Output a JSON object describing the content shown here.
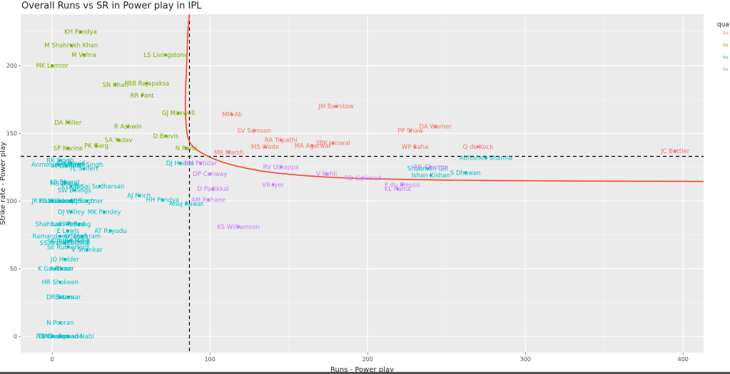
{
  "page": {
    "title": "Overall Runs vs SR in Power play in IPL"
  },
  "chart_data": {
    "type": "scatter",
    "title": "Overall Runs vs SR in Power play in IPL",
    "xlabel": "Runs - Power play",
    "ylabel": "Strike rate - Power play",
    "xlim": [
      -20,
      413
    ],
    "ylim": [
      -12,
      238
    ],
    "xticks": [
      0,
      100,
      200,
      300,
      400
    ],
    "yticks": [
      0,
      50,
      100,
      150,
      200
    ],
    "grid": true,
    "vline_x": 87,
    "hline_y": 133,
    "legend_title": "qua",
    "legend_placement": "right",
    "legend_keys": [
      "Aa",
      "Aa",
      "Aa",
      "Aa"
    ],
    "colors": {
      "q1": "#f8766d",
      "q2": "#7cae00",
      "q3": "#00bfc4",
      "q4": "#c77cff",
      "curve": "#f8442b",
      "panel": "#ebebeb"
    },
    "curve": [
      [
        87,
        238
      ],
      [
        86,
        225
      ],
      [
        85.5,
        210
      ],
      [
        85,
        195
      ],
      [
        84.5,
        180
      ],
      [
        84.5,
        165
      ],
      [
        85.5,
        150
      ],
      [
        88,
        142
      ],
      [
        94,
        136
      ],
      [
        105,
        130
      ],
      [
        120,
        125
      ],
      [
        140,
        121
      ],
      [
        170,
        118
      ],
      [
        200,
        116.5
      ],
      [
        250,
        115.5
      ],
      [
        300,
        115
      ],
      [
        350,
        114.7
      ],
      [
        413,
        114.5
      ]
    ],
    "points": [
      {
        "name": "KH Pandya",
        "x": 18,
        "y": 225,
        "group": "q2"
      },
      {
        "name": "M Shahrukh Khan",
        "x": 12,
        "y": 215,
        "group": "q2"
      },
      {
        "name": "M Vohra",
        "x": 20,
        "y": 208,
        "group": "q2"
      },
      {
        "name": "LS Livingstone",
        "x": 72,
        "y": 208,
        "group": "q2"
      },
      {
        "name": "MK Lomror",
        "x": 0,
        "y": 200,
        "group": "q2"
      },
      {
        "name": "SN Khan",
        "x": 40,
        "y": 186,
        "group": "q2"
      },
      {
        "name": "PBB Rajapaksa",
        "x": 60,
        "y": 187,
        "group": "q2"
      },
      {
        "name": "RR Pant",
        "x": 57,
        "y": 178,
        "group": "q2"
      },
      {
        "name": "GJ Maxwell",
        "x": 80,
        "y": 165,
        "group": "q2"
      },
      {
        "name": "DA Miller",
        "x": 10,
        "y": 158,
        "group": "q2"
      },
      {
        "name": "R Ashwin",
        "x": 48,
        "y": 155,
        "group": "q2"
      },
      {
        "name": "D Brevis",
        "x": 72,
        "y": 148,
        "group": "q2"
      },
      {
        "name": "SA Yadav",
        "x": 42,
        "y": 145,
        "group": "q2"
      },
      {
        "name": "PK Garg",
        "x": 28,
        "y": 141,
        "group": "q2"
      },
      {
        "name": "SP Narine",
        "x": 10,
        "y": 139,
        "group": "q2"
      },
      {
        "name": "N Rana",
        "x": 85,
        "y": 139,
        "group": "q2"
      },
      {
        "name": "MM Ali",
        "x": 114,
        "y": 164,
        "group": "q1"
      },
      {
        "name": "JM Bairstow",
        "x": 180,
        "y": 170,
        "group": "q1"
      },
      {
        "name": "SV Samson",
        "x": 128,
        "y": 152,
        "group": "q1"
      },
      {
        "name": "DA Warner",
        "x": 243,
        "y": 155,
        "group": "q1"
      },
      {
        "name": "PP Shaw",
        "x": 227,
        "y": 152,
        "group": "q1"
      },
      {
        "name": "RA Tripathi",
        "x": 145,
        "y": 145,
        "group": "q1"
      },
      {
        "name": "MS Wade",
        "x": 135,
        "y": 140,
        "group": "q1"
      },
      {
        "name": "MA Agarwal",
        "x": 165,
        "y": 141,
        "group": "q1"
      },
      {
        "name": "YBK Jaiswal",
        "x": 178,
        "y": 143,
        "group": "q1"
      },
      {
        "name": "WP Saha",
        "x": 230,
        "y": 140,
        "group": "q1"
      },
      {
        "name": "Q de Kock",
        "x": 270,
        "y": 140,
        "group": "q1"
      },
      {
        "name": "JC Buttler",
        "x": 395,
        "y": 137,
        "group": "q1"
      },
      {
        "name": "MR Marsh",
        "x": 112,
        "y": 136,
        "group": "q1"
      },
      {
        "name": "Abhishek Sharma",
        "x": 275,
        "y": 132,
        "group": "q3"
      },
      {
        "name": "DJ Hooda",
        "x": 81,
        "y": 128,
        "group": "q3"
      },
      {
        "name": "RK Singh",
        "x": 5,
        "y": 130,
        "group": "q3"
      },
      {
        "name": "Anmolpreet Singh",
        "x": 4,
        "y": 127,
        "group": "q3"
      },
      {
        "name": "TH David",
        "x": 12,
        "y": 128,
        "group": "q3"
      },
      {
        "name": "Arshdeep Singh",
        "x": 17,
        "y": 127,
        "group": "q3"
      },
      {
        "name": "M Lomror",
        "x": 9,
        "y": 126,
        "group": "q3"
      },
      {
        "name": "TL Seifert",
        "x": 20,
        "y": 124,
        "group": "q3"
      },
      {
        "name": "Shubman Gill",
        "x": 238,
        "y": 124,
        "group": "q3"
      },
      {
        "name": "S Dhawan",
        "x": 262,
        "y": 121,
        "group": "q3"
      },
      {
        "name": "Ishan Kishan",
        "x": 240,
        "y": 119,
        "group": "q3"
      },
      {
        "name": "KS Bharat",
        "x": 8,
        "y": 114,
        "group": "q3"
      },
      {
        "name": "MS Dhoni",
        "x": 8,
        "y": 113,
        "group": "q3"
      },
      {
        "name": "S Dube",
        "x": 12,
        "y": 111,
        "group": "q3"
      },
      {
        "name": "B Sai Sudharsan",
        "x": 30,
        "y": 111,
        "group": "q3"
      },
      {
        "name": "SW Billings",
        "x": 14,
        "y": 108,
        "group": "q3"
      },
      {
        "name": "AJ Finch",
        "x": 55,
        "y": 104,
        "group": "q3"
      },
      {
        "name": "HH Pandya",
        "x": 70,
        "y": 101,
        "group": "q3"
      },
      {
        "name": "JR Hazlewood",
        "x": 0,
        "y": 100,
        "group": "q3"
      },
      {
        "name": "KS Williamson",
        "x": 5,
        "y": 100,
        "group": "q3"
      },
      {
        "name": "Mandeep Singh",
        "x": 12,
        "y": 100,
        "group": "q3"
      },
      {
        "name": "MJ Santner",
        "x": 22,
        "y": 100,
        "group": "q3"
      },
      {
        "name": "Anuj Rawat",
        "x": 85,
        "y": 98,
        "group": "q3"
      },
      {
        "name": "DJ Willey",
        "x": 12,
        "y": 92,
        "group": "q3"
      },
      {
        "name": "MK Pandey",
        "x": 33,
        "y": 92,
        "group": "q3"
      },
      {
        "name": "Shahbaz Ahmed",
        "x": 5,
        "y": 83,
        "group": "q3"
      },
      {
        "name": "Lalit Yadav",
        "x": 10,
        "y": 83,
        "group": "q3"
      },
      {
        "name": "R Parag",
        "x": 17,
        "y": 83,
        "group": "q3"
      },
      {
        "name": "E Lewis",
        "x": 10,
        "y": 78,
        "group": "q3"
      },
      {
        "name": "AT Rayudu",
        "x": 37,
        "y": 78,
        "group": "q3"
      },
      {
        "name": "Ramandeep Singh",
        "x": 5,
        "y": 74,
        "group": "q3"
      },
      {
        "name": "AK Markram",
        "x": 19,
        "y": 74,
        "group": "q3"
      },
      {
        "name": "Umran Malik",
        "x": 12,
        "y": 71,
        "group": "q3"
      },
      {
        "name": "SE Rutherford",
        "x": 10,
        "y": 70,
        "group": "q3"
      },
      {
        "name": "SS Prabhudessai",
        "x": 8,
        "y": 69,
        "group": "q3"
      },
      {
        "name": "SE Rutherford",
        "x": 10,
        "y": 66,
        "group": "q3"
      },
      {
        "name": "V Shankar",
        "x": 22,
        "y": 64,
        "group": "q3"
      },
      {
        "name": "JO Holder",
        "x": 8,
        "y": 57,
        "group": "q3"
      },
      {
        "name": "K Gowtham",
        "x": 2,
        "y": 50,
        "group": "q3"
      },
      {
        "name": "A Tomar",
        "x": 6,
        "y": 50,
        "group": "q3"
      },
      {
        "name": "HR Shokeen",
        "x": 5,
        "y": 40,
        "group": "q3"
      },
      {
        "name": "DR Sams",
        "x": 5,
        "y": 29,
        "group": "q3"
      },
      {
        "name": "B Kumar",
        "x": 10,
        "y": 29,
        "group": "q3"
      },
      {
        "name": "N Pooran",
        "x": 5,
        "y": 10,
        "group": "q3"
      },
      {
        "name": "RD Chahar",
        "x": 0,
        "y": 0,
        "group": "q3"
      },
      {
        "name": "TU Deshpande",
        "x": 5,
        "y": 0,
        "group": "q3"
      },
      {
        "name": "Mohammad Nabi",
        "x": 10,
        "y": 0,
        "group": "q3"
      },
      {
        "name": "RM Patidar",
        "x": 94,
        "y": 128,
        "group": "q4"
      },
      {
        "name": "RV Uthappa",
        "x": 145,
        "y": 125,
        "group": "q4"
      },
      {
        "name": "RG Sharma",
        "x": 240,
        "y": 125,
        "group": "q4"
      },
      {
        "name": "DP Conway",
        "x": 100,
        "y": 120,
        "group": "q4"
      },
      {
        "name": "V Kohli",
        "x": 174,
        "y": 120,
        "group": "q4"
      },
      {
        "name": "RD Gaikwad",
        "x": 197,
        "y": 117,
        "group": "q4"
      },
      {
        "name": "VR Iyer",
        "x": 140,
        "y": 112,
        "group": "q4"
      },
      {
        "name": "F du Plessis",
        "x": 222,
        "y": 112,
        "group": "q4"
      },
      {
        "name": "KL Rahul",
        "x": 219,
        "y": 109,
        "group": "q4"
      },
      {
        "name": "D Padikkal",
        "x": 102,
        "y": 109,
        "group": "q4"
      },
      {
        "name": "AM Rahane",
        "x": 99,
        "y": 101,
        "group": "q4"
      },
      {
        "name": "KS Williamson",
        "x": 118,
        "y": 81,
        "group": "q4"
      }
    ]
  }
}
